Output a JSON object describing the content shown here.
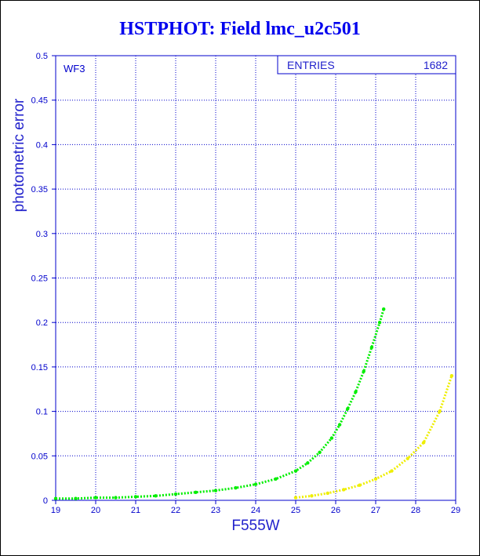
{
  "chart_data": {
    "type": "scatter",
    "title": "HSTPHOT: Field lmc_u2c501",
    "xlabel": "F555W",
    "ylabel": "photometric error",
    "xlim": [
      19,
      29
    ],
    "ylim": [
      0,
      0.5
    ],
    "xticks": [
      "19",
      "20",
      "21",
      "22",
      "23",
      "24",
      "25",
      "26",
      "27",
      "28",
      "29"
    ],
    "yticks": [
      "0",
      "0.05",
      "0.1",
      "0.15",
      "0.2",
      "0.25",
      "0.3",
      "0.35",
      "0.4",
      "0.45",
      "0.5"
    ],
    "grid": true,
    "panel_label": "WF3",
    "stats": {
      "label": "ENTRIES",
      "value": "1682"
    },
    "series": [
      {
        "color": "#00ee00",
        "x": [
          19.0,
          19.5,
          20.0,
          20.5,
          21.0,
          21.5,
          22.0,
          22.5,
          23.0,
          23.5,
          24.0,
          24.5,
          25.0,
          25.3,
          25.6,
          25.9,
          26.1,
          26.3,
          26.5,
          26.7,
          26.9,
          27.1,
          27.2
        ],
        "y": [
          0.002,
          0.002,
          0.003,
          0.003,
          0.004,
          0.005,
          0.007,
          0.009,
          0.011,
          0.014,
          0.018,
          0.024,
          0.033,
          0.042,
          0.054,
          0.07,
          0.085,
          0.103,
          0.122,
          0.145,
          0.172,
          0.2,
          0.215
        ]
      },
      {
        "color": "#eeee00",
        "x": [
          25.0,
          25.4,
          25.8,
          26.2,
          26.6,
          27.0,
          27.4,
          27.8,
          28.2,
          28.6,
          28.9
        ],
        "y": [
          0.003,
          0.005,
          0.008,
          0.012,
          0.017,
          0.024,
          0.033,
          0.047,
          0.065,
          0.1,
          0.14
        ]
      }
    ]
  }
}
